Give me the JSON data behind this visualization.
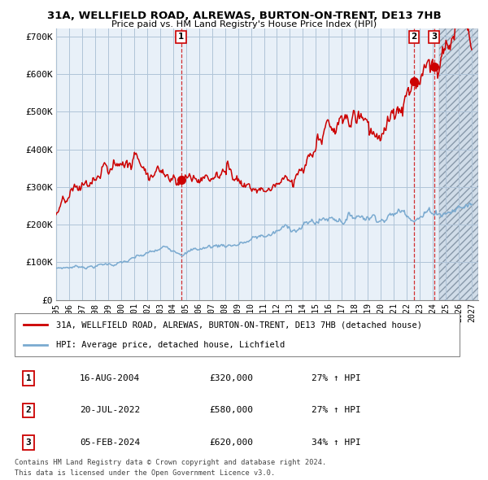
{
  "title_line1": "31A, WELLFIELD ROAD, ALREWAS, BURTON-ON-TRENT, DE13 7HB",
  "title_line2": "Price paid vs. HM Land Registry's House Price Index (HPI)",
  "ylabel_ticks": [
    "£0",
    "£100K",
    "£200K",
    "£300K",
    "£400K",
    "£500K",
    "£600K",
    "£700K"
  ],
  "ytick_values": [
    0,
    100000,
    200000,
    300000,
    400000,
    500000,
    600000,
    700000
  ],
  "ylim": [
    0,
    720000
  ],
  "xlim_start": 1995.0,
  "xlim_end": 2027.5,
  "legend_label_red": "31A, WELLFIELD ROAD, ALREWAS, BURTON-ON-TRENT, DE13 7HB (detached house)",
  "legend_label_blue": "HPI: Average price, detached house, Lichfield",
  "transactions": [
    {
      "label": "1",
      "date": 2004.62,
      "price": 320000,
      "text_date": "16-AUG-2004",
      "text_price": "£320,000",
      "text_hpi": "27% ↑ HPI"
    },
    {
      "label": "2",
      "date": 2022.54,
      "price": 580000,
      "text_date": "20-JUL-2022",
      "text_price": "£580,000",
      "text_hpi": "27% ↑ HPI"
    },
    {
      "label": "3",
      "date": 2024.09,
      "price": 620000,
      "text_date": "05-FEB-2024",
      "text_price": "£620,000",
      "text_hpi": "34% ↑ HPI"
    }
  ],
  "footer_line1": "Contains HM Land Registry data © Crown copyright and database right 2024.",
  "footer_line2": "This data is licensed under the Open Government Licence v3.0.",
  "bg_color": "#ffffff",
  "plot_bg_color": "#e8f0f8",
  "grid_color": "#b0c4d8",
  "red_color": "#cc0000",
  "blue_color": "#7aaad0",
  "hatch_start": 2024.5,
  "future_bg_color": "#d0dce8"
}
